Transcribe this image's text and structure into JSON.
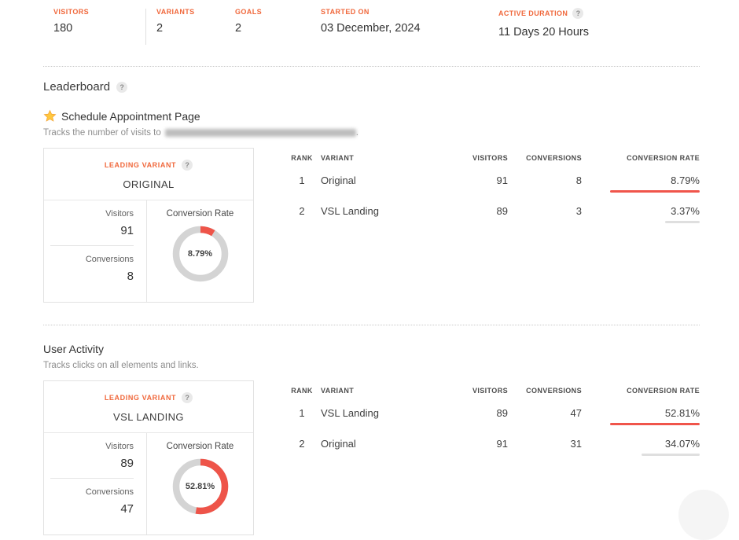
{
  "colors": {
    "accent_orange": "#f0683c",
    "donut_red": "#ee5449",
    "donut_track": "#d4d4d4",
    "bar_red": "#f0554b",
    "bar_gray": "#dfdfdf"
  },
  "help_glyph": "?",
  "stats": {
    "items": [
      {
        "label": "VISITORS",
        "value": "180"
      },
      {
        "label": "VARIANTS",
        "value": "2"
      },
      {
        "label": "GOALS",
        "value": "2"
      },
      {
        "label": "STARTED ON",
        "value": "03 December, 2024"
      },
      {
        "label": "ACTIVE DURATION",
        "value": "11 Days 20 Hours"
      }
    ]
  },
  "leaderboard_title": "Leaderboard",
  "goals": [
    {
      "title": "Schedule Appointment Page",
      "desc_prefix": "Tracks the number of visits to",
      "desc_suffix": ".",
      "leading_variant": {
        "label": "LEADING VARIANT",
        "name": "ORIGINAL",
        "visitors_label": "Visitors",
        "visitors_value": "91",
        "conversions_label": "Conversions",
        "conversions_value": "8",
        "rate_label": "Conversion Rate",
        "rate_text": "8.79%",
        "rate_pct": 8.79
      },
      "table": {
        "headers": {
          "rank": "RANK",
          "variant": "VARIANT",
          "visitors": "VISITORS",
          "conversions": "CONVERSIONS",
          "rate": "CONVERSION RATE"
        },
        "rows": [
          {
            "rank": "1",
            "variant": "Original",
            "visitors": "91",
            "conversions": "8",
            "rate": "8.79%",
            "rate_pct": 8.79,
            "bar_pct": 100,
            "bar_color": "red"
          },
          {
            "rank": "2",
            "variant": "VSL Landing",
            "visitors": "89",
            "conversions": "3",
            "rate": "3.37%",
            "rate_pct": 3.37,
            "bar_pct": 38.3,
            "bar_color": "gray"
          }
        ]
      }
    },
    {
      "title": "User Activity",
      "desc_prefix": "Tracks clicks on all elements and links.",
      "desc_suffix": "",
      "leading_variant": {
        "label": "LEADING VARIANT",
        "name": "VSL LANDING",
        "visitors_label": "Visitors",
        "visitors_value": "89",
        "conversions_label": "Conversions",
        "conversions_value": "47",
        "rate_label": "Conversion Rate",
        "rate_text": "52.81%",
        "rate_pct": 52.81
      },
      "table": {
        "headers": {
          "rank": "RANK",
          "variant": "VARIANT",
          "visitors": "VISITORS",
          "conversions": "CONVERSIONS",
          "rate": "CONVERSION RATE"
        },
        "rows": [
          {
            "rank": "1",
            "variant": "VSL Landing",
            "visitors": "89",
            "conversions": "47",
            "rate": "52.81%",
            "rate_pct": 52.81,
            "bar_pct": 100,
            "bar_color": "red"
          },
          {
            "rank": "2",
            "variant": "Original",
            "visitors": "91",
            "conversions": "31",
            "rate": "34.07%",
            "rate_pct": 34.07,
            "bar_pct": 64.5,
            "bar_color": "gray"
          }
        ]
      }
    }
  ]
}
